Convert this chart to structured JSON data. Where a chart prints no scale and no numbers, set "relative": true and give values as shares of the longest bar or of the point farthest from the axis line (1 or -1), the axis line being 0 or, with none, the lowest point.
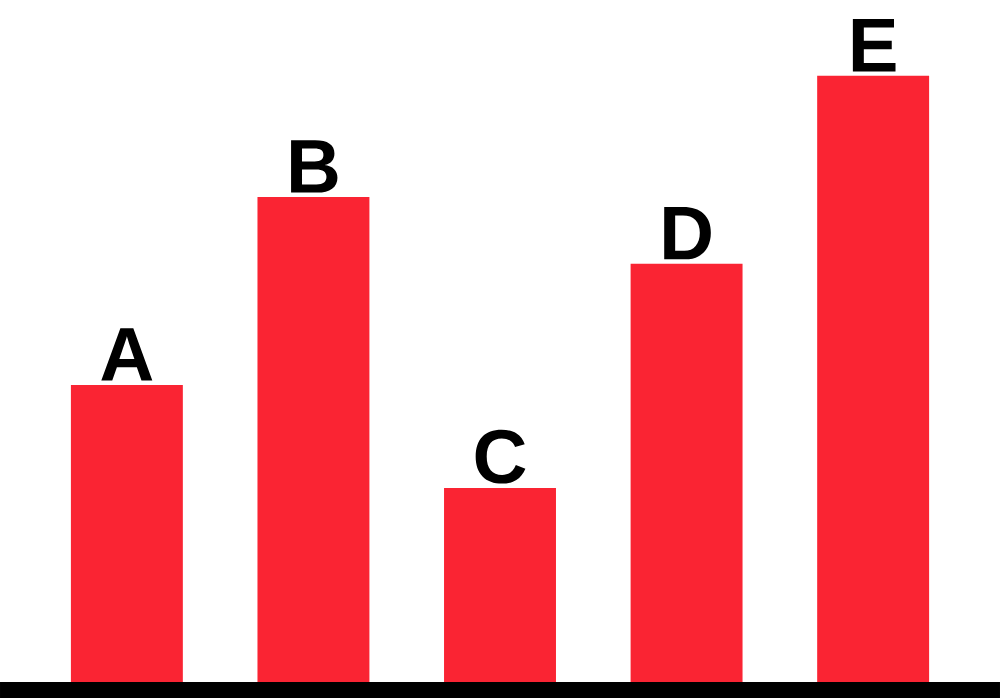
{
  "chart_data": {
    "type": "bar",
    "relative": true,
    "categories": [
      "A",
      "B",
      "C",
      "D",
      "E"
    ],
    "values": [
      0.49,
      0.8,
      0.32,
      0.69,
      1
    ],
    "color": "#fa2433"
  }
}
